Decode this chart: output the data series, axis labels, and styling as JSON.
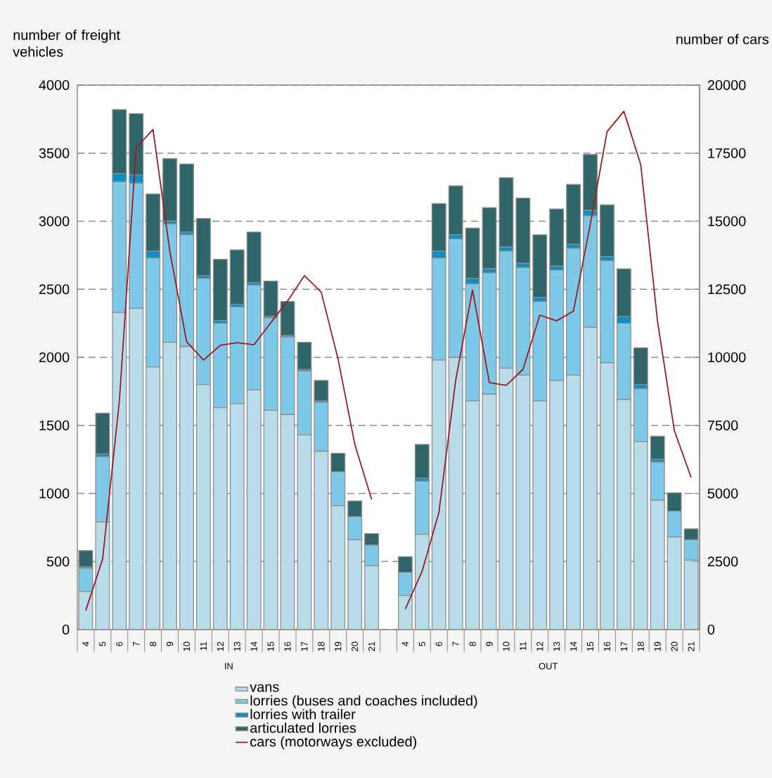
{
  "chart_data": {
    "type": "bar",
    "stacked": true,
    "ylabel": "number of freight vehicles",
    "y2label": "number of cars",
    "categories": [
      "4",
      "5",
      "6",
      "7",
      "8",
      "9",
      "10",
      "11",
      "12",
      "13",
      "14",
      "15",
      "16",
      "17",
      "18",
      "19",
      "20",
      "21",
      null,
      "4",
      "5",
      "6",
      "7",
      "8",
      "9",
      "10",
      "11",
      "12",
      "13",
      "14",
      "15",
      "16",
      "17",
      "18",
      "19",
      "20",
      "21"
    ],
    "series": [
      {
        "name": "vans",
        "color": "#b8dcea",
        "values": [
          280,
          790,
          2330,
          2360,
          1930,
          2110,
          2080,
          1800,
          1630,
          1660,
          1760,
          1610,
          1580,
          1430,
          1310,
          910,
          660,
          470,
          null,
          250,
          700,
          1980,
          2000,
          1680,
          1730,
          1920,
          1870,
          1680,
          1830,
          1870,
          2220,
          1960,
          1690,
          1380,
          950,
          680,
          510
        ]
      },
      {
        "name": "lorries (buses and coaches included)",
        "color": "#7ec8ea",
        "values": [
          170,
          480,
          960,
          920,
          800,
          870,
          820,
          780,
          620,
          710,
          770,
          680,
          570,
          470,
          360,
          250,
          170,
          150,
          null,
          170,
          390,
          750,
          870,
          860,
          890,
          860,
          790,
          730,
          810,
          930,
          820,
          750,
          560,
          390,
          280,
          190,
          150
        ]
      },
      {
        "name": "lorries with trailer",
        "color": "#0a8fc4",
        "values": [
          10,
          20,
          60,
          60,
          50,
          20,
          20,
          20,
          20,
          20,
          20,
          10,
          10,
          10,
          10,
          null,
          null,
          null,
          null,
          null,
          20,
          50,
          30,
          40,
          30,
          30,
          30,
          30,
          30,
          30,
          40,
          30,
          50,
          30,
          20,
          null,
          null
        ]
      },
      {
        "name": "articulated lorries",
        "color": "#2f6468",
        "values": [
          120,
          300,
          470,
          450,
          420,
          460,
          500,
          420,
          450,
          400,
          370,
          260,
          250,
          200,
          150,
          135,
          115,
          85,
          null,
          115,
          250,
          350,
          360,
          370,
          450,
          510,
          480,
          460,
          420,
          440,
          410,
          380,
          350,
          270,
          170,
          135,
          80
        ]
      },
      {
        "name": "cars (motorways excluded)",
        "type": "line",
        "axis": "y2",
        "color": "#9e1b20",
        "values": [
          700,
          2580,
          8400,
          17700,
          18370,
          13900,
          10570,
          9900,
          10440,
          10540,
          10460,
          11270,
          12070,
          13000,
          12400,
          9950,
          6800,
          4780,
          null,
          750,
          2140,
          4300,
          9170,
          12480,
          9070,
          8970,
          9560,
          11550,
          11340,
          11700,
          14880,
          18290,
          19040,
          17080,
          11320,
          7310,
          5580
        ]
      }
    ],
    "ylim": [
      0,
      4000
    ],
    "yticks": [
      0,
      500,
      1000,
      1500,
      2000,
      2500,
      3000,
      3500,
      4000
    ],
    "y2lim": [
      0,
      20000
    ],
    "y2ticks": [
      0,
      2500,
      5000,
      7500,
      10000,
      12500,
      15000,
      17500,
      20000
    ],
    "grid": "y",
    "legend": "bottom",
    "annotations": [
      "IN",
      "OUT"
    ]
  }
}
